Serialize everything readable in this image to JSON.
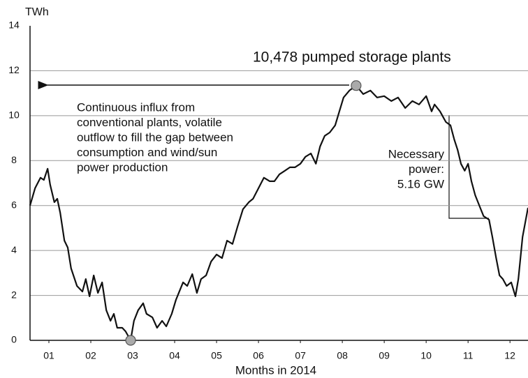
{
  "chart_data": {
    "type": "line",
    "y_label": "TWh",
    "x_label": "Months in 2014",
    "annotations": {
      "plants": "10,478 pumped storage plants",
      "influx": [
        "Continuous influx from",
        "conventional plants, volatile",
        "outflow to fill the gap between",
        "consumption and wind/sun",
        "power production"
      ],
      "power": [
        "Necessary",
        "power:",
        "5.16 GW"
      ]
    },
    "xlim": [
      0.55,
      12.43
    ],
    "xticks": [
      {
        "value": 1,
        "label": "01"
      },
      {
        "value": 2,
        "label": "02"
      },
      {
        "value": 3,
        "label": "03"
      },
      {
        "value": 4,
        "label": "04"
      },
      {
        "value": 5,
        "label": "05"
      },
      {
        "value": 6,
        "label": "06"
      },
      {
        "value": 7,
        "label": "07"
      },
      {
        "value": 8,
        "label": "08"
      },
      {
        "value": 9,
        "label": "09"
      },
      {
        "value": 10,
        "label": "10"
      },
      {
        "value": 11,
        "label": "11"
      },
      {
        "value": 12,
        "label": "12"
      }
    ],
    "ylim": [
      0,
      14
    ],
    "yticks": [
      0,
      2,
      4,
      6,
      8,
      10,
      12,
      14
    ],
    "grid": true,
    "color": "#111111",
    "x": [
      0.55,
      0.67,
      0.8,
      0.88,
      0.97,
      1.03,
      1.13,
      1.2,
      1.27,
      1.37,
      1.45,
      1.53,
      1.67,
      1.8,
      1.88,
      1.97,
      2.07,
      2.17,
      2.27,
      2.37,
      2.47,
      2.55,
      2.63,
      2.75,
      2.83,
      2.95,
      3.03,
      3.13,
      3.25,
      3.33,
      3.47,
      3.58,
      3.7,
      3.8,
      3.93,
      4.03,
      4.2,
      4.3,
      4.42,
      4.53,
      4.63,
      4.75,
      4.87,
      5.0,
      5.13,
      5.25,
      5.38,
      5.5,
      5.63,
      5.77,
      5.87,
      6.0,
      6.13,
      6.27,
      6.38,
      6.5,
      6.63,
      6.75,
      6.87,
      7.0,
      7.12,
      7.25,
      7.37,
      7.47,
      7.58,
      7.7,
      7.83,
      7.93,
      8.03,
      8.17,
      8.33,
      8.5,
      8.67,
      8.83,
      9.0,
      9.17,
      9.33,
      9.5,
      9.67,
      9.83,
      10.0,
      10.13,
      10.2,
      10.33,
      10.47,
      10.58,
      10.67,
      10.75,
      10.83,
      10.92,
      11.0,
      11.08,
      11.17,
      11.27,
      11.37,
      11.5,
      11.58,
      11.67,
      11.75,
      11.83,
      11.92,
      12.03,
      12.13,
      12.2,
      12.3,
      12.43
    ],
    "values": [
      6.0,
      6.77,
      7.24,
      7.14,
      7.64,
      6.93,
      6.15,
      6.3,
      5.68,
      4.44,
      4.13,
      3.2,
      2.42,
      2.17,
      2.73,
      1.96,
      2.89,
      2.11,
      2.58,
      1.34,
      0.87,
      1.18,
      0.56,
      0.56,
      0.4,
      0,
      0.87,
      1.34,
      1.65,
      1.18,
      1.02,
      0.56,
      0.87,
      0.62,
      1.18,
      1.8,
      2.58,
      2.42,
      2.95,
      2.11,
      2.73,
      2.89,
      3.51,
      3.82,
      3.66,
      4.44,
      4.29,
      5.06,
      5.84,
      6.15,
      6.3,
      6.77,
      7.24,
      7.08,
      7.08,
      7.39,
      7.55,
      7.7,
      7.7,
      7.86,
      8.17,
      8.32,
      7.86,
      8.63,
      9.1,
      9.25,
      9.57,
      10.19,
      10.81,
      11.12,
      11.34,
      10.96,
      11.12,
      10.81,
      10.87,
      10.65,
      10.81,
      10.34,
      10.65,
      10.5,
      10.87,
      10.19,
      10.5,
      10.19,
      9.72,
      9.57,
      8.94,
      8.48,
      7.86,
      7.55,
      7.86,
      7.08,
      6.46,
      5.99,
      5.53,
      5.37,
      4.6,
      3.66,
      2.89,
      2.73,
      2.42,
      2.58,
      1.96,
      2.73,
      4.6,
      5.9
    ]
  }
}
